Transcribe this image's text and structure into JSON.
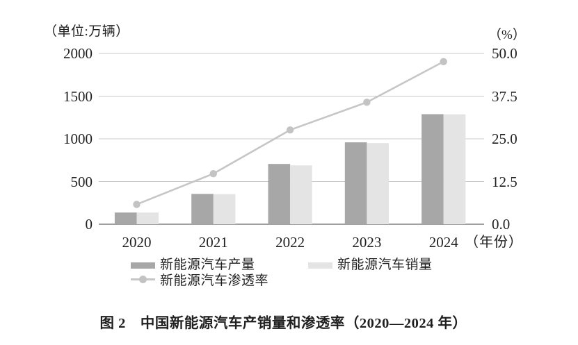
{
  "caption": "图 2　中国新能源汽车产销量和渗透率（2020—2024 年）",
  "chart_data": {
    "type": "bar",
    "subtype": "bar+line combo, dual axis",
    "title": "图 2 中国新能源汽车产销量和渗透率（2020—2024 年）",
    "categories": [
      "2020",
      "2021",
      "2022",
      "2023",
      "2024"
    ],
    "series": [
      {
        "name": "新能源汽车产量",
        "type": "bar",
        "axis": "left",
        "color": "#a7a7a7",
        "values": [
          137,
          355,
          706,
          959,
          1289
        ]
      },
      {
        "name": "新能源汽车销量",
        "type": "bar",
        "axis": "left",
        "color": "#e4e4e4",
        "values": [
          137,
          352,
          689,
          950,
          1287
        ]
      },
      {
        "name": "新能源汽车渗透率",
        "type": "line",
        "axis": "right",
        "color": "#c6c6c6",
        "values": [
          5.8,
          14.8,
          27.6,
          35.7,
          47.6
        ]
      }
    ],
    "left_axis": {
      "unit": "（单位:万辆）",
      "ticks": [
        "0",
        "500",
        "1000",
        "1500",
        "2000"
      ],
      "min": 0,
      "max": 2000
    },
    "right_axis": {
      "unit": "（%）",
      "ticks": [
        "0.0",
        "12.5",
        "25.0",
        "37.5",
        "50.0"
      ],
      "min": 0,
      "max": 50
    },
    "xlabel_suffix": "（年份）",
    "grid": "horizontal",
    "legend_position": "bottom",
    "colors": {
      "gridline": "#c9c9c9",
      "baseline": "#a0a0a0",
      "text": "#1f1f1f",
      "line_marker": "#c3c3c3"
    }
  }
}
